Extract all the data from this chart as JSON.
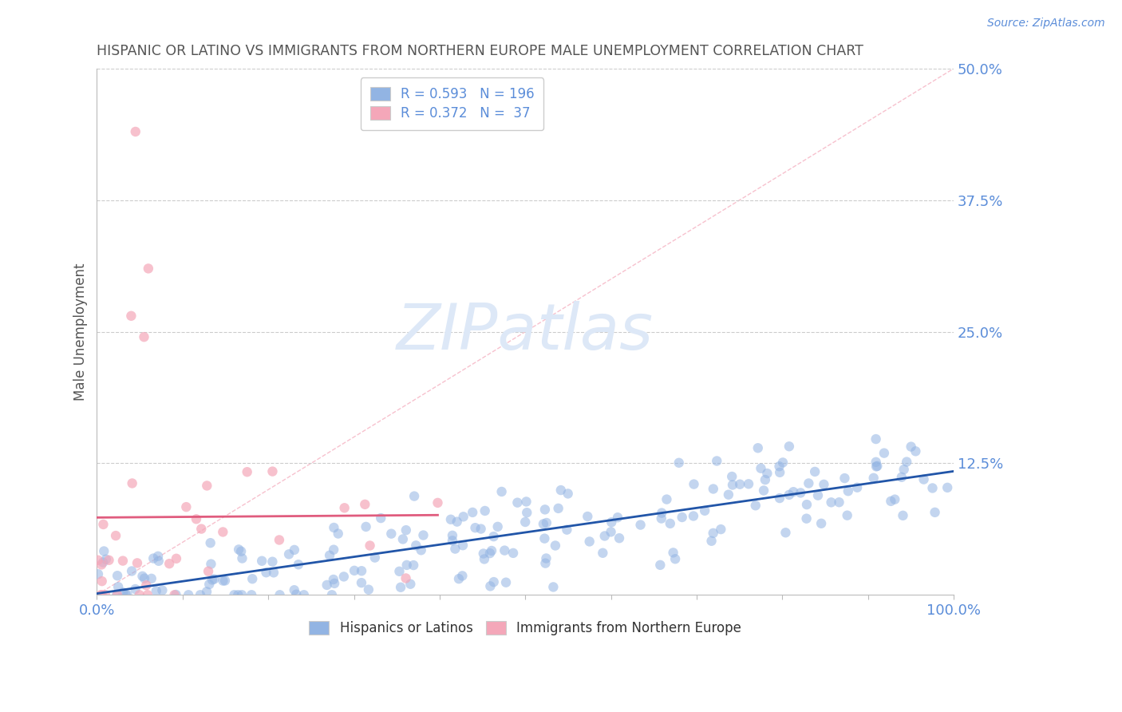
{
  "title": "HISPANIC OR LATINO VS IMMIGRANTS FROM NORTHERN EUROPE MALE UNEMPLOYMENT CORRELATION CHART",
  "source": "Source: ZipAtlas.com",
  "ylabel": "Male Unemployment",
  "watermark": "ZIPatlas",
  "blue_R": 0.593,
  "blue_N": 196,
  "pink_R": 0.372,
  "pink_N": 37,
  "xlim": [
    0.0,
    1.0
  ],
  "ylim": [
    0.0,
    0.5
  ],
  "yticks": [
    0.0,
    0.125,
    0.25,
    0.375,
    0.5
  ],
  "ytick_labels": [
    "",
    "12.5%",
    "25.0%",
    "37.5%",
    "50.0%"
  ],
  "blue_color": "#92b4e3",
  "pink_color": "#f4a7b9",
  "blue_line_color": "#2155a8",
  "pink_line_color": "#e05c7e",
  "diag_line_color": "#f4a7b9",
  "title_color": "#555555",
  "axis_color": "#bbbbbb",
  "grid_color": "#cccccc",
  "tick_label_color": "#5b8dd9",
  "watermark_color": "#dde8f7",
  "background_color": "#ffffff",
  "legend_box_color": "#ffffff"
}
